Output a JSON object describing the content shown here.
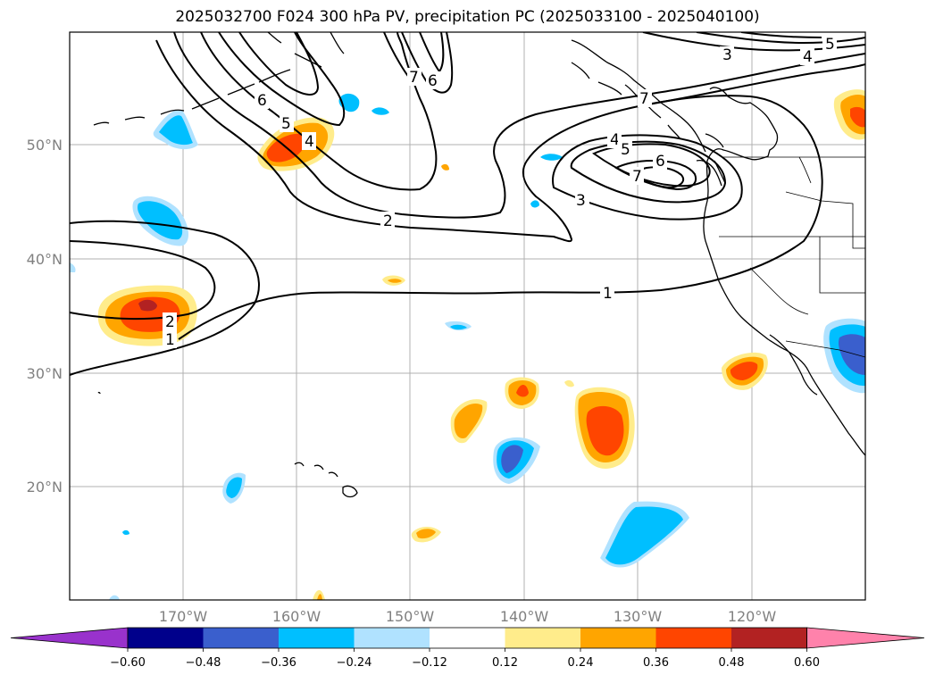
{
  "title": "2025032700 F024 300 hPa PV, precipitation PC (2025033100 - 2025040100)",
  "map": {
    "lat_labels": [
      "50°N",
      "40°N",
      "30°N",
      "20°N"
    ],
    "lon_labels": [
      "170°W",
      "160°W",
      "150°W",
      "140°W",
      "130°W",
      "120°W"
    ],
    "contour_labels": [
      "1",
      "1",
      "2",
      "2",
      "3",
      "3",
      "4",
      "4",
      "4",
      "5",
      "5",
      "5",
      "6",
      "6",
      "6",
      "7",
      "7",
      "7"
    ]
  },
  "colorbar": {
    "ticks": [
      "−0.60",
      "−0.48",
      "−0.36",
      "−0.24",
      "−0.12",
      "0.12",
      "0.24",
      "0.36",
      "0.48",
      "0.60"
    ],
    "colors": [
      "#9932cc",
      "#00008b",
      "#3a5fcd",
      "#00bfff",
      "#b0e2ff",
      "#ffffff",
      "#ffec8b",
      "#ffa500",
      "#ff4500",
      "#b22222",
      "#ff82ab"
    ]
  }
}
